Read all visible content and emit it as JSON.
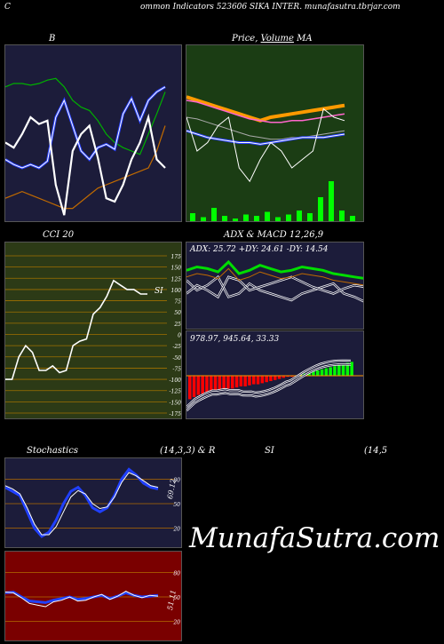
{
  "header": {
    "left_letter": "C",
    "title": "ommon Indicators 523606 SIKA INTER. munafasutra.tbrjar.com"
  },
  "brand": "MunafaSutra.com",
  "colors": {
    "navy": "#1c1c3a",
    "green_panel": "#1b3d14",
    "olive": "#2c3a16",
    "red_panel": "#7a0000",
    "grid_orange": "#b36b00"
  },
  "chart_data": [
    {
      "id": "bollinger",
      "type": "line",
      "title": "B",
      "title_right": "",
      "series": [
        {
          "values": [
            35,
            32,
            30,
            32,
            30,
            34,
            60,
            70,
            55,
            40,
            35,
            42,
            44,
            41,
            62,
            71,
            58,
            70,
            75,
            78
          ]
        },
        {
          "values": [
            78,
            80,
            80,
            79,
            80,
            82,
            83,
            78,
            70,
            66,
            64,
            58,
            50,
            45,
            42,
            40,
            38,
            50,
            62,
            75
          ]
        },
        {
          "values": [
            12,
            14,
            16,
            14,
            12,
            10,
            8,
            6,
            6,
            10,
            14,
            18,
            20,
            22,
            24,
            26,
            28,
            30,
            40,
            55
          ]
        },
        {
          "values": [
            45,
            42,
            50,
            60,
            56,
            58,
            20,
            2,
            40,
            50,
            55,
            36,
            12,
            10,
            20,
            35,
            45,
            60,
            35,
            30
          ]
        }
      ]
    },
    {
      "id": "price_ma",
      "type": "line",
      "title": "Price, ",
      "title_mid": "Volume",
      "title_right": " MA",
      "series": [
        {
          "values": [
            72,
            70,
            68,
            66,
            64,
            62,
            60,
            58,
            60,
            61,
            62,
            63,
            64,
            65,
            66,
            67
          ]
        },
        {
          "values": [
            70,
            69,
            67,
            65,
            63,
            61,
            59,
            58,
            57,
            57,
            58,
            58,
            59,
            60,
            61,
            62
          ]
        },
        {
          "values": [
            52,
            50,
            48,
            47,
            46,
            45,
            45,
            44,
            45,
            46,
            47,
            48,
            48,
            48,
            49,
            50
          ]
        },
        {
          "values": [
            60,
            40,
            45,
            55,
            60,
            30,
            22,
            35,
            45,
            40,
            30,
            35,
            40,
            65,
            60,
            58
          ]
        }
      ],
      "volume": [
        6,
        3,
        10,
        4,
        2,
        5,
        4,
        7,
        3,
        5,
        8,
        6,
        18,
        30,
        8,
        4
      ]
    },
    {
      "id": "cci",
      "type": "line",
      "title": "CCI 20",
      "label_right": "SI",
      "y_ticks": [
        "175",
        "150",
        "125",
        "100",
        "75",
        "50",
        "25",
        "0",
        "-25",
        "-50",
        "-75",
        "-100",
        "-125",
        "-150",
        "-175"
      ],
      "ylim": [
        -175,
        175
      ],
      "values": [
        -100,
        -100,
        -50,
        -25,
        -40,
        -80,
        -80,
        -70,
        -85,
        -80,
        -25,
        -15,
        -10,
        45,
        60,
        85,
        120,
        110,
        100,
        100,
        90,
        90
      ]
    },
    {
      "id": "adx",
      "type": "line",
      "title": "ADX  & MACD 12,26,9",
      "legend": "ADX: 25.72  +DY: 24.61 -DY: 14.54",
      "series": [
        {
          "values": [
            30,
            32,
            31,
            29,
            35,
            28,
            30,
            33,
            31,
            29,
            30,
            32,
            31,
            30,
            28,
            27,
            26,
            25
          ]
        },
        {
          "values": [
            20,
            25,
            22,
            18,
            30,
            28,
            22,
            24,
            26,
            28,
            30,
            27,
            24,
            22,
            20,
            23,
            25,
            24
          ]
        },
        {
          "values": [
            28,
            22,
            25,
            30,
            18,
            20,
            26,
            22,
            20,
            18,
            16,
            20,
            22,
            24,
            26,
            20,
            18,
            15
          ]
        }
      ]
    },
    {
      "id": "macd",
      "type": "bar",
      "legend": "978.97, 945.64, 33.33",
      "values": [
        -22,
        -20,
        -18,
        -17,
        -16,
        -15,
        -14,
        -14,
        -13,
        -12,
        -12,
        -11,
        -10,
        -10,
        -9,
        -8,
        -8,
        -7,
        -6,
        -5,
        -4,
        -3,
        -2,
        -1,
        -1,
        0,
        1,
        2,
        3,
        4,
        5,
        6,
        7,
        8,
        9,
        10,
        11,
        12,
        13
      ]
    },
    {
      "id": "stoch",
      "type": "line",
      "title": "Stochastics",
      "title_mid": "(14,3,3) & R",
      "y_ticks": [
        "80",
        "50",
        "20"
      ],
      "value_label": "69.12",
      "ylim": [
        0,
        100
      ],
      "series": [
        {
          "values": [
            70,
            65,
            60,
            40,
            20,
            10,
            15,
            30,
            50,
            65,
            70,
            60,
            45,
            40,
            45,
            60,
            80,
            92,
            85,
            75,
            70,
            68
          ]
        },
        {
          "values": [
            72,
            68,
            62,
            45,
            25,
            12,
            12,
            22,
            40,
            58,
            66,
            62,
            50,
            44,
            46,
            58,
            76,
            88,
            84,
            78,
            72,
            70
          ]
        }
      ]
    },
    {
      "id": "rsi",
      "type": "line",
      "title": "SI",
      "title_right": "(14,5",
      "y_ticks": [
        "80",
        "50",
        "20"
      ],
      "value_label": "51.11",
      "ylim": [
        0,
        100
      ],
      "series": [
        {
          "values": [
            55,
            56,
            50,
            45,
            44,
            43,
            46,
            48,
            50,
            47,
            48,
            50,
            52,
            48,
            51,
            55,
            52,
            50,
            51,
            52
          ]
        },
        {
          "values": [
            56,
            55,
            49,
            42,
            40,
            38,
            44,
            46,
            50,
            45,
            46,
            50,
            53,
            47,
            51,
            57,
            52,
            49,
            52,
            51
          ]
        }
      ]
    }
  ]
}
